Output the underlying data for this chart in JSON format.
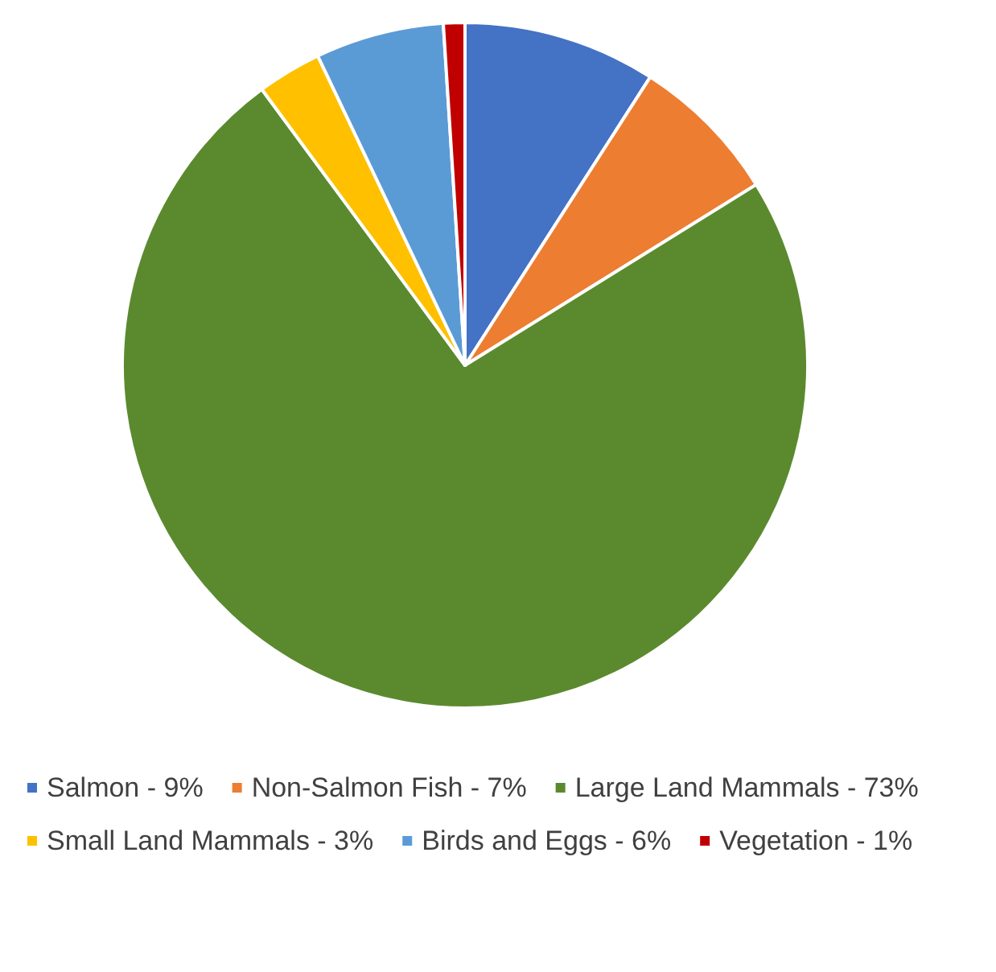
{
  "chart_data": {
    "type": "pie",
    "categories": [
      "Salmon - 9%",
      "Non-Salmon Fish - 7%",
      "Large Land Mammals - 73%",
      "Small Land Mammals - 3%",
      "Birds and Eggs - 6%",
      "Vegetation - 1%"
    ],
    "values": [
      9,
      7,
      73,
      3,
      6,
      1
    ],
    "colors": [
      "#4472c4",
      "#ed7d31",
      "#5b8a2e",
      "#ffc000",
      "#5b9bd5",
      "#c00000"
    ],
    "legend": "bottom"
  }
}
